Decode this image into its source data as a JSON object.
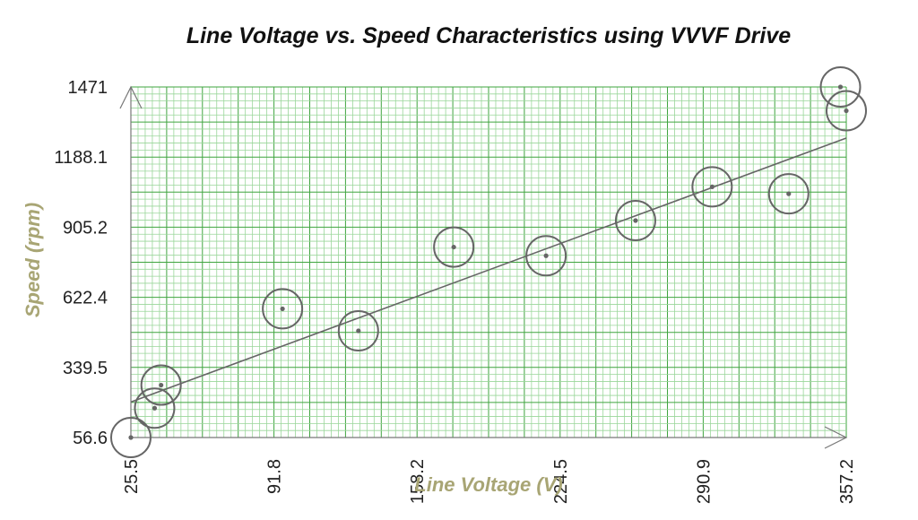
{
  "chart_data": {
    "type": "scatter",
    "title": "Line Voltage vs. Speed Characteristics using VVVF Drive",
    "xlabel": "Line Voltage (V)",
    "ylabel": "Speed (rpm)",
    "xlim": [
      25.5,
      357.2
    ],
    "ylim": [
      56.6,
      1471
    ],
    "x_ticks": [
      "25.5",
      "91.8",
      "158.2",
      "224.5",
      "290.9",
      "357.2"
    ],
    "y_ticks": [
      "56.6",
      "339.5",
      "622.4",
      "905.2",
      "1188.1",
      "1471"
    ],
    "grid": true,
    "points": [
      {
        "x": 25.5,
        "y": 56.6
      },
      {
        "x": 36.5,
        "y": 175
      },
      {
        "x": 39.5,
        "y": 268
      },
      {
        "x": 95.8,
        "y": 576
      },
      {
        "x": 131.0,
        "y": 487
      },
      {
        "x": 175.2,
        "y": 825
      },
      {
        "x": 218.0,
        "y": 790
      },
      {
        "x": 259.5,
        "y": 932
      },
      {
        "x": 295.0,
        "y": 1068
      },
      {
        "x": 330.5,
        "y": 1040
      },
      {
        "x": 354.5,
        "y": 1471
      },
      {
        "x": 357.2,
        "y": 1375
      }
    ],
    "trendline": {
      "x": [
        25.5,
        357.2
      ],
      "y": [
        200,
        1265
      ]
    },
    "colors": {
      "grid_major": "#3fa43f",
      "grid_minor": "#9ad69a",
      "plot_bg": "#ffffff",
      "axis_title": "#a8a574",
      "marker": "#666666",
      "line": "#666666"
    }
  }
}
